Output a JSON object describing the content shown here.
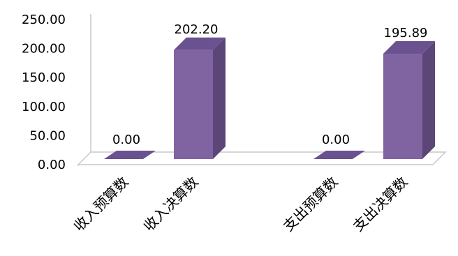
{
  "chart_data": {
    "type": "bar",
    "categories": [
      "收入预算数",
      "收入决算数",
      "支出预算数",
      "支出决算数"
    ],
    "values": [
      0.0,
      202.2,
      0.0,
      195.89
    ],
    "data_labels": [
      "0.00",
      "202.20",
      "0.00",
      "195.89"
    ],
    "y_ticks": [
      "0.00",
      "50.00",
      "100.00",
      "150.00",
      "200.00",
      "250.00"
    ],
    "ylim": [
      0,
      250
    ],
    "title": "",
    "xlabel": "",
    "ylabel": "",
    "grid": false,
    "legend": "none",
    "colors": {
      "front": "#8064A2",
      "side": "#5B4677",
      "top": "#6A5290",
      "floor": "#c9c9c9"
    }
  }
}
